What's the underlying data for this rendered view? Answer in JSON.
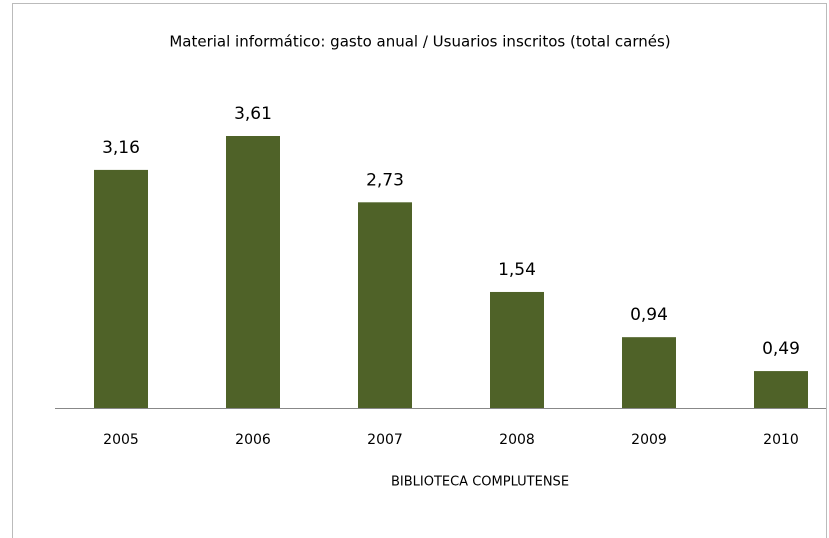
{
  "chart_data": {
    "type": "bar",
    "title": "Material informático: gasto anual / Usuarios inscritos (total carnés)",
    "x_label": "BIBLIOTECA COMPLUTENSE",
    "categories": [
      "2005",
      "2006",
      "2007",
      "2008",
      "2009",
      "2010"
    ],
    "values": [
      3.16,
      3.61,
      2.73,
      1.54,
      0.94,
      0.49
    ],
    "value_labels": [
      "3,16",
      "3,61",
      "2,73",
      "1,54",
      "0,94",
      "0,49"
    ],
    "color": "#4f6228"
  }
}
